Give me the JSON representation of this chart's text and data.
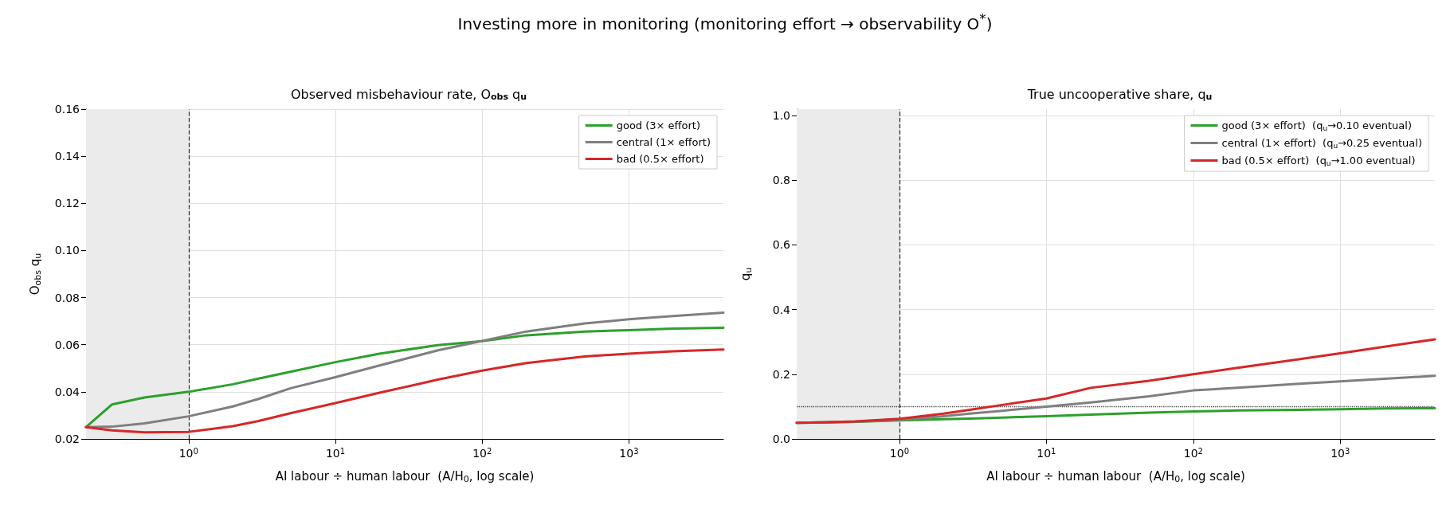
{
  "chart_data": [
    {
      "type": "line",
      "title": "Observed misbehaviour rate, O$_{obs}$ q$_{u}$",
      "annotations": [
        "Investing more in monitoring (monitoring effort → observability O$^{*}$)"
      ],
      "xlabel": "AI labour ÷ human labour  (A/H$_{0}$, log scale)",
      "ylabel": "O$_{obs}$ q$_{u}$",
      "log": "x",
      "grid": true,
      "legend": "top right",
      "marker": "none",
      "line_style": "solid",
      "x": [
        0.2,
        0.3,
        0.5,
        1,
        2,
        3,
        5,
        10,
        20,
        50,
        100,
        200,
        500,
        1000,
        2000,
        4400
      ],
      "xlim": [
        0.2,
        4400
      ],
      "xticks": [
        {
          "value": 1,
          "label": "10$^{0}$"
        },
        {
          "value": 10,
          "label": "10$^{1}$"
        },
        {
          "value": 100,
          "label": "10$^{2}$"
        },
        {
          "value": 1000,
          "label": "10$^{3}$"
        }
      ],
      "ylim": [
        0.02,
        0.16
      ],
      "yticks": [
        0.02,
        0.04,
        0.06,
        0.08,
        {
          "value": 0.1,
          "label": "0.10"
        },
        0.12,
        0.14,
        0.16
      ],
      "series": [
        {
          "name": "good (3× effort)",
          "color": "#2ca02c",
          "values": [
            0.025,
            0.0346,
            0.0376,
            0.04,
            0.0432,
            0.0456,
            0.0486,
            0.0526,
            0.0562,
            0.0598,
            0.0615,
            0.064,
            0.0656,
            0.0662,
            0.0668,
            0.0672
          ]
        },
        {
          "name": "central (1× effort)",
          "color": "#7f7f7f",
          "values": [
            0.025,
            0.0252,
            0.0266,
            0.0296,
            0.0338,
            0.037,
            0.0416,
            0.0462,
            0.0512,
            0.0576,
            0.0616,
            0.0656,
            0.069,
            0.0708,
            0.0722,
            0.0736
          ]
        },
        {
          "name": "bad (0.5× effort)",
          "color": "#d62728",
          "values": [
            0.025,
            0.0236,
            0.0228,
            0.023,
            0.0254,
            0.0276,
            0.031,
            0.0352,
            0.0396,
            0.0452,
            0.049,
            0.0522,
            0.055,
            0.0562,
            0.0572,
            0.058
          ]
        }
      ],
      "ref_lines": [
        {
          "axis": "x",
          "value": 1,
          "color": "#333333",
          "line_style": "dashed"
        }
      ],
      "bands": [
        {
          "axis": "x",
          "from": 0.2,
          "to": 1,
          "color": "#ebebeb"
        }
      ]
    },
    {
      "type": "line",
      "title": "True uncooperative share, q$_{u}$",
      "xlabel": "AI labour ÷ human labour  (A/H$_{0}$, log scale)",
      "ylabel": "q$_{u}$",
      "log": "x",
      "grid": true,
      "legend": "top right",
      "marker": "none",
      "line_style": "solid",
      "x": [
        0.2,
        0.3,
        0.5,
        1,
        2,
        3,
        5,
        10,
        20,
        50,
        100,
        200,
        500,
        1000,
        2000,
        4400
      ],
      "xlim": [
        0.2,
        4400
      ],
      "xticks": [
        {
          "value": 1,
          "label": "10$^{0}$"
        },
        {
          "value": 10,
          "label": "10$^{1}$"
        },
        {
          "value": 100,
          "label": "10$^{2}$"
        },
        {
          "value": 1000,
          "label": "10$^{3}$"
        }
      ],
      "ylim": [
        0,
        1.02
      ],
      "yticks": [
        {
          "value": 0,
          "label": "0.0"
        },
        0.2,
        0.4,
        0.6,
        0.8,
        {
          "value": 1,
          "label": "1.0"
        }
      ],
      "series": [
        {
          "name": "good (3× effort)  (q$_{u}$→0.10 eventual)",
          "color": "#2ca02c",
          "values": [
            0.05,
            0.051,
            0.053,
            0.057,
            0.061,
            0.063,
            0.066,
            0.07,
            0.075,
            0.081,
            0.085,
            0.088,
            0.09,
            0.092,
            0.094,
            0.095
          ]
        },
        {
          "name": "central (1× effort)  (q$_{u}$→0.25 eventual)",
          "color": "#7f7f7f",
          "values": [
            0.05,
            0.051,
            0.053,
            0.059,
            0.07,
            0.078,
            0.087,
            0.1,
            0.113,
            0.132,
            0.15,
            0.158,
            0.17,
            0.178,
            0.186,
            0.195
          ]
        },
        {
          "name": "bad (0.5× effort)  (q$_{u}$→1.00 eventual)",
          "color": "#d62728",
          "values": [
            0.05,
            0.051,
            0.054,
            0.062,
            0.078,
            0.09,
            0.105,
            0.125,
            0.158,
            0.18,
            0.2,
            0.22,
            0.245,
            0.265,
            0.285,
            0.308
          ]
        }
      ],
      "ref_lines": [
        {
          "axis": "x",
          "value": 1,
          "color": "#333333",
          "line_style": "dashed"
        },
        {
          "axis": "y",
          "value": 0.1,
          "color": "#444444",
          "line_style": "dotted"
        }
      ],
      "bands": [
        {
          "axis": "x",
          "from": 0.2,
          "to": 1,
          "color": "#ebebeb"
        }
      ]
    }
  ]
}
